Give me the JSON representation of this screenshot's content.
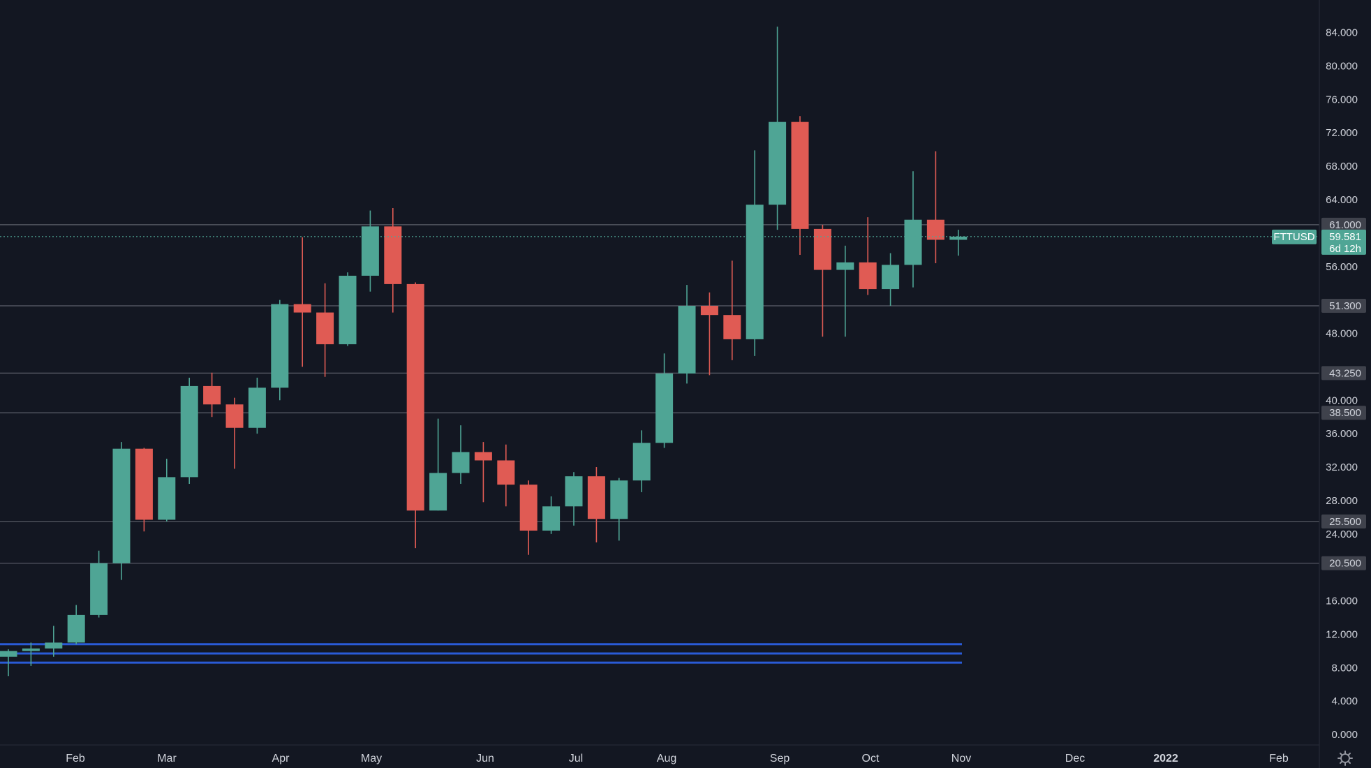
{
  "chart_data": {
    "type": "candlestick",
    "symbol": "FTTUSD",
    "timeframe": "weekly",
    "current_price": "59.581",
    "countdown": "6d 12h",
    "colors": {
      "background": "#131722",
      "up": "#4fa595",
      "down": "#e05b54",
      "level_line": "#5d606b",
      "support_band": "#2a5bd7",
      "axis_text": "#d1d4dc"
    },
    "y_axis": {
      "ylim": [
        -1.5,
        88
      ],
      "ticks": [
        "0.000",
        "4.000",
        "8.000",
        "12.000",
        "16.000",
        "24.000",
        "28.000",
        "32.000",
        "36.000",
        "40.000",
        "48.000",
        "56.000",
        "64.000",
        "68.000",
        "72.000",
        "76.000",
        "80.000",
        "84.000"
      ]
    },
    "x_axis": {
      "labels": [
        {
          "text": "Feb",
          "bold": false
        },
        {
          "text": "Mar",
          "bold": false
        },
        {
          "text": "Apr",
          "bold": false
        },
        {
          "text": "May",
          "bold": false
        },
        {
          "text": "Jun",
          "bold": false
        },
        {
          "text": "Jul",
          "bold": false
        },
        {
          "text": "Aug",
          "bold": false
        },
        {
          "text": "Sep",
          "bold": false
        },
        {
          "text": "Oct",
          "bold": false
        },
        {
          "text": "Nov",
          "bold": false
        },
        {
          "text": "Dec",
          "bold": false
        },
        {
          "text": "2022",
          "bold": true
        },
        {
          "text": "Feb",
          "bold": false
        }
      ]
    },
    "levels": [
      {
        "value": 61.0,
        "label": "61.000"
      },
      {
        "value": 51.3,
        "label": "51.300"
      },
      {
        "value": 43.25,
        "label": "43.250"
      },
      {
        "value": 38.5,
        "label": "38.500"
      },
      {
        "value": 25.5,
        "label": "25.500"
      },
      {
        "value": 20.5,
        "label": "20.500"
      }
    ],
    "support_bands": [
      10.8,
      9.7,
      8.6
    ],
    "candles": [
      {
        "o": 9.3,
        "h": 10.2,
        "l": 7.0,
        "c": 10.0
      },
      {
        "o": 10.0,
        "h": 11.0,
        "l": 8.2,
        "c": 10.3
      },
      {
        "o": 10.3,
        "h": 13.0,
        "l": 9.3,
        "c": 11.0
      },
      {
        "o": 11.0,
        "h": 15.5,
        "l": 10.8,
        "c": 14.3
      },
      {
        "o": 14.3,
        "h": 22.0,
        "l": 14.0,
        "c": 20.5
      },
      {
        "o": 20.5,
        "h": 35.0,
        "l": 18.5,
        "c": 34.2
      },
      {
        "o": 34.2,
        "h": 34.3,
        "l": 24.3,
        "c": 25.7
      },
      {
        "o": 25.7,
        "h": 33.0,
        "l": 25.5,
        "c": 30.8
      },
      {
        "o": 30.8,
        "h": 42.7,
        "l": 30.0,
        "c": 41.7
      },
      {
        "o": 41.7,
        "h": 43.3,
        "l": 38.0,
        "c": 39.5
      },
      {
        "o": 39.5,
        "h": 40.3,
        "l": 31.8,
        "c": 36.7
      },
      {
        "o": 36.7,
        "h": 42.7,
        "l": 36.0,
        "c": 41.5
      },
      {
        "o": 41.5,
        "h": 52.0,
        "l": 40.0,
        "c": 51.5
      },
      {
        "o": 51.5,
        "h": 59.5,
        "l": 44.0,
        "c": 50.5
      },
      {
        "o": 50.5,
        "h": 54.0,
        "l": 42.8,
        "c": 46.7
      },
      {
        "o": 46.7,
        "h": 55.3,
        "l": 46.5,
        "c": 54.9
      },
      {
        "o": 54.9,
        "h": 62.7,
        "l": 53.0,
        "c": 60.8
      },
      {
        "o": 60.8,
        "h": 63.0,
        "l": 50.5,
        "c": 53.9
      },
      {
        "o": 53.9,
        "h": 54.1,
        "l": 22.3,
        "c": 26.8
      },
      {
        "o": 26.8,
        "h": 37.8,
        "l": 26.8,
        "c": 31.3
      },
      {
        "o": 31.3,
        "h": 37.0,
        "l": 30.0,
        "c": 33.8
      },
      {
        "o": 33.8,
        "h": 35.0,
        "l": 27.8,
        "c": 32.8
      },
      {
        "o": 32.8,
        "h": 34.7,
        "l": 27.3,
        "c": 29.9
      },
      {
        "o": 29.9,
        "h": 30.4,
        "l": 21.5,
        "c": 24.4
      },
      {
        "o": 24.4,
        "h": 28.5,
        "l": 24.0,
        "c": 27.3
      },
      {
        "o": 27.3,
        "h": 31.4,
        "l": 25.0,
        "c": 30.9
      },
      {
        "o": 30.9,
        "h": 32.0,
        "l": 23.0,
        "c": 25.8
      },
      {
        "o": 25.8,
        "h": 30.7,
        "l": 23.2,
        "c": 30.4
      },
      {
        "o": 30.4,
        "h": 36.4,
        "l": 29.0,
        "c": 34.9
      },
      {
        "o": 34.9,
        "h": 45.6,
        "l": 34.3,
        "c": 43.2
      },
      {
        "o": 43.2,
        "h": 53.8,
        "l": 42.0,
        "c": 51.3
      },
      {
        "o": 51.3,
        "h": 52.9,
        "l": 43.0,
        "c": 50.2
      },
      {
        "o": 50.2,
        "h": 56.7,
        "l": 44.8,
        "c": 47.3
      },
      {
        "o": 47.3,
        "h": 69.9,
        "l": 45.3,
        "c": 63.4
      },
      {
        "o": 63.4,
        "h": 84.7,
        "l": 60.4,
        "c": 73.3
      },
      {
        "o": 73.3,
        "h": 74.0,
        "l": 57.4,
        "c": 60.5
      },
      {
        "o": 60.5,
        "h": 61.0,
        "l": 47.6,
        "c": 55.6
      },
      {
        "o": 55.6,
        "h": 58.5,
        "l": 47.6,
        "c": 56.5
      },
      {
        "o": 56.5,
        "h": 61.9,
        "l": 52.6,
        "c": 53.3
      },
      {
        "o": 53.3,
        "h": 57.6,
        "l": 51.3,
        "c": 56.2
      },
      {
        "o": 56.2,
        "h": 67.4,
        "l": 53.5,
        "c": 61.6
      },
      {
        "o": 61.6,
        "h": 69.8,
        "l": 56.4,
        "c": 59.2
      },
      {
        "o": 59.2,
        "h": 60.4,
        "l": 57.3,
        "c": 59.58
      }
    ]
  }
}
